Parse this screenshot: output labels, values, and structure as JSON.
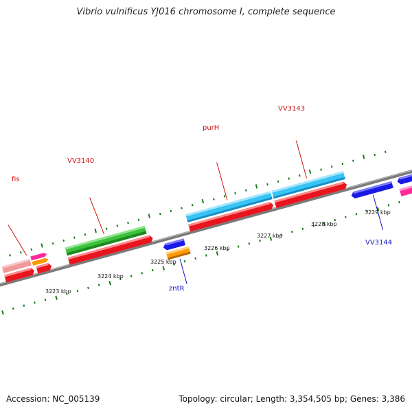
{
  "title": "Vibrio vulnificus YJ016 chromosome I, complete sequence",
  "footer": {
    "accession": "Accession: NC_005139",
    "topology": "Topology: circular; Length: 3,354,505 bp; Genes: 3,386"
  },
  "kbp_labels": [
    "3223 kbp",
    "3224 kbp",
    "3225 kbp",
    "3226 kbp",
    "3227 kbp",
    "3228 kbp",
    "3229 kbp"
  ],
  "gene_labels": {
    "fis": "fis",
    "vv3140": "VV3140",
    "purh": "purH",
    "vv3143": "VV3143",
    "zntr": "zntR",
    "vv3144": "VV3144"
  },
  "colors": {
    "red": "#e8141e",
    "green": "#3cc23c",
    "cyan": "#38c4f4",
    "blue": "#1a1ae6",
    "orange": "#ff9a00",
    "pink": "#ff2a9a",
    "salmon": "#f0989a",
    "forward_label": "#d01010",
    "reverse_label": "#1010c0",
    "tick": "#1a7a1a",
    "backbone": "#8a8a8a"
  }
}
